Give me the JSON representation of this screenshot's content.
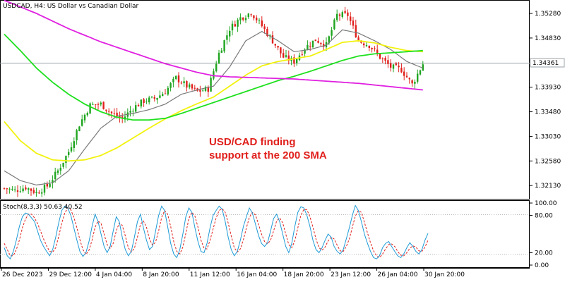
{
  "header": {
    "symbol_line": "USDCAD, H4:  US Dollar vs Canadian Dollar"
  },
  "annotation": {
    "line1": "USD/CAD finding",
    "line2": "support at the 200 SMA"
  },
  "price_axis": {
    "ticks": [
      "1.35280",
      "1.34830",
      "1.33930",
      "1.33480",
      "1.33030",
      "1.32580",
      "1.32130"
    ],
    "current_price_label": "1.34361"
  },
  "stoch": {
    "label": "Stoch(8,3,3) 50.63 40.52",
    "ticks": [
      "100.00",
      "80.00",
      "20.00",
      "0.00"
    ]
  },
  "time_axis": {
    "labels": [
      "26 Dec 2023",
      "29 Dec 12:00",
      "4 Jan 04:00",
      "8 Jan 20:00",
      "11 Jan 12:00",
      "16 Jan 04:00",
      "18 Jan 20:00",
      "23 Jan 12:00",
      "26 Jan 04:00",
      "30 Jan 20:00"
    ]
  },
  "colors": {
    "bull": "#1fa51f",
    "bear": "#e0201c",
    "sma_fast": "#7a7a7a",
    "sma_50": "#f2f20f",
    "sma_100": "#1ee01e",
    "sma_200": "#e020e0",
    "stoch_main": "#1e9ad6",
    "stoch_signal": "#e0201c",
    "annotation": "#e0201c"
  },
  "chart_data": {
    "type": "candlestick",
    "symbol": "USDCAD",
    "timeframe": "H4",
    "ylim": [
      1.319,
      1.355
    ],
    "current_price": 1.34361,
    "x_labels": [
      "26 Dec 2023",
      "29 Dec 12:00",
      "4 Jan 04:00",
      "8 Jan 20:00",
      "11 Jan 12:00",
      "16 Jan 04:00",
      "18 Jan 20:00",
      "23 Jan 12:00",
      "26 Jan 04:00",
      "30 Jan 20:00"
    ],
    "close_path": [
      [
        0,
        1.3208
      ],
      [
        4,
        1.3204
      ],
      [
        8,
        1.321
      ],
      [
        12,
        1.32
      ],
      [
        16,
        1.3212
      ],
      [
        20,
        1.324
      ],
      [
        24,
        1.3275
      ],
      [
        28,
        1.3325
      ],
      [
        32,
        1.336
      ],
      [
        36,
        1.3362
      ],
      [
        40,
        1.3345
      ],
      [
        44,
        1.3335
      ],
      [
        48,
        1.3355
      ],
      [
        52,
        1.3368
      ],
      [
        56,
        1.3372
      ],
      [
        60,
        1.3385
      ],
      [
        64,
        1.341
      ],
      [
        68,
        1.3395
      ],
      [
        72,
        1.3385
      ],
      [
        76,
        1.339
      ],
      [
        80,
        1.3455
      ],
      [
        84,
        1.35
      ],
      [
        88,
        1.352
      ],
      [
        92,
        1.353
      ],
      [
        96,
        1.3505
      ],
      [
        100,
        1.3478
      ],
      [
        104,
        1.3448
      ],
      [
        108,
        1.344
      ],
      [
        112,
        1.3465
      ],
      [
        116,
        1.348
      ],
      [
        120,
        1.347
      ],
      [
        124,
        1.3525
      ],
      [
        128,
        1.3525
      ],
      [
        132,
        1.3478
      ],
      [
        136,
        1.347
      ],
      [
        140,
        1.3448
      ],
      [
        144,
        1.343
      ],
      [
        148,
        1.3425
      ],
      [
        152,
        1.3398
      ],
      [
        156,
        1.3436
      ]
    ],
    "series": [
      {
        "name": "SMA fast",
        "values": [
          [
            0,
            1.324
          ],
          [
            6,
            1.3222
          ],
          [
            12,
            1.3214
          ],
          [
            18,
            1.3218
          ],
          [
            24,
            1.324
          ],
          [
            30,
            1.328
          ],
          [
            36,
            1.3318
          ],
          [
            42,
            1.334
          ],
          [
            48,
            1.3345
          ],
          [
            54,
            1.3352
          ],
          [
            60,
            1.3362
          ],
          [
            66,
            1.338
          ],
          [
            72,
            1.3388
          ],
          [
            78,
            1.3395
          ],
          [
            84,
            1.343
          ],
          [
            90,
            1.3478
          ],
          [
            96,
            1.3495
          ],
          [
            102,
            1.3478
          ],
          [
            108,
            1.3458
          ],
          [
            114,
            1.3462
          ],
          [
            120,
            1.347
          ],
          [
            126,
            1.3498
          ],
          [
            132,
            1.3492
          ],
          [
            138,
            1.3478
          ],
          [
            144,
            1.3462
          ],
          [
            150,
            1.344
          ],
          [
            156,
            1.3428
          ]
        ]
      },
      {
        "name": "SMA 50",
        "values": [
          [
            0,
            1.333
          ],
          [
            6,
            1.3295
          ],
          [
            12,
            1.3272
          ],
          [
            18,
            1.326
          ],
          [
            24,
            1.3258
          ],
          [
            30,
            1.326
          ],
          [
            36,
            1.3268
          ],
          [
            42,
            1.3282
          ],
          [
            48,
            1.33
          ],
          [
            54,
            1.3318
          ],
          [
            60,
            1.3335
          ],
          [
            66,
            1.335
          ],
          [
            72,
            1.3363
          ],
          [
            78,
            1.3375
          ],
          [
            84,
            1.3395
          ],
          [
            90,
            1.3415
          ],
          [
            96,
            1.3432
          ],
          [
            102,
            1.344
          ],
          [
            108,
            1.3445
          ],
          [
            114,
            1.345
          ],
          [
            120,
            1.3462
          ],
          [
            126,
            1.3475
          ],
          [
            132,
            1.3478
          ],
          [
            138,
            1.3474
          ],
          [
            144,
            1.3466
          ],
          [
            150,
            1.346
          ],
          [
            156,
            1.3458
          ]
        ]
      },
      {
        "name": "SMA 100",
        "values": [
          [
            0,
            1.349
          ],
          [
            6,
            1.346
          ],
          [
            12,
            1.3428
          ],
          [
            18,
            1.3402
          ],
          [
            24,
            1.338
          ],
          [
            30,
            1.3362
          ],
          [
            36,
            1.3348
          ],
          [
            42,
            1.3338
          ],
          [
            48,
            1.3333
          ],
          [
            54,
            1.3333
          ],
          [
            60,
            1.3336
          ],
          [
            66,
            1.3345
          ],
          [
            72,
            1.3355
          ],
          [
            78,
            1.3365
          ],
          [
            84,
            1.3375
          ],
          [
            90,
            1.3385
          ],
          [
            96,
            1.3395
          ],
          [
            102,
            1.3405
          ],
          [
            108,
            1.3413
          ],
          [
            114,
            1.3422
          ],
          [
            120,
            1.3432
          ],
          [
            126,
            1.3442
          ],
          [
            132,
            1.345
          ],
          [
            138,
            1.3454
          ],
          [
            144,
            1.3456
          ],
          [
            150,
            1.3458
          ],
          [
            156,
            1.346
          ]
        ]
      },
      {
        "name": "SMA 200",
        "values": [
          [
            0,
            1.3552
          ],
          [
            6,
            1.354
          ],
          [
            12,
            1.3528
          ],
          [
            18,
            1.3514
          ],
          [
            24,
            1.35
          ],
          [
            30,
            1.3488
          ],
          [
            36,
            1.3476
          ],
          [
            42,
            1.3466
          ],
          [
            48,
            1.3456
          ],
          [
            54,
            1.3446
          ],
          [
            60,
            1.3436
          ],
          [
            66,
            1.3428
          ],
          [
            72,
            1.342
          ],
          [
            78,
            1.3414
          ],
          [
            84,
            1.3412
          ],
          [
            90,
            1.3411
          ],
          [
            96,
            1.341
          ],
          [
            102,
            1.3409
          ],
          [
            108,
            1.3408
          ],
          [
            114,
            1.3406
          ],
          [
            120,
            1.3404
          ],
          [
            126,
            1.3402
          ],
          [
            132,
            1.34
          ],
          [
            138,
            1.3397
          ],
          [
            144,
            1.3394
          ],
          [
            150,
            1.3391
          ],
          [
            156,
            1.3388
          ]
        ]
      }
    ],
    "stochastic": {
      "params": "8,3,3",
      "main": 50.63,
      "signal": 40.52,
      "ylim": [
        0,
        100
      ],
      "levels": [
        80,
        20
      ],
      "main_series": [
        28,
        15,
        10,
        22,
        40,
        62,
        78,
        84,
        82,
        76,
        70,
        55,
        40,
        30,
        22,
        15,
        25,
        45,
        68,
        88,
        95,
        92,
        80,
        60,
        40,
        22,
        14,
        20,
        38,
        62,
        82,
        70,
        50,
        30,
        20,
        30,
        55,
        78,
        70,
        45,
        25,
        15,
        22,
        45,
        70,
        82,
        60,
        40,
        25,
        30,
        55,
        80,
        95,
        88,
        62,
        35,
        18,
        12,
        25,
        50,
        78,
        92,
        85,
        60,
        38,
        22,
        20,
        35,
        60,
        80,
        88,
        95,
        90,
        70,
        45,
        25,
        15,
        22,
        40,
        62,
        78,
        92,
        84,
        66,
        48,
        35,
        30,
        36,
        55,
        75,
        82,
        70,
        50,
        30,
        20,
        35,
        62,
        85,
        94,
        92,
        80,
        62,
        40,
        25,
        20,
        28,
        40,
        50,
        45,
        30,
        22,
        18,
        25,
        42,
        60,
        80,
        96,
        88,
        70,
        50,
        35,
        22,
        12,
        10,
        15,
        28,
        35,
        38,
        30,
        22,
        15,
        12,
        18,
        28,
        36,
        30,
        22,
        18,
        25,
        40,
        51
      ],
      "signal_series": [
        35,
        25,
        15,
        15,
        25,
        40,
        60,
        74,
        82,
        82,
        76,
        67,
        55,
        42,
        31,
        22,
        21,
        28,
        46,
        67,
        84,
        92,
        89,
        77,
        60,
        41,
        25,
        17,
        24,
        40,
        61,
        71,
        67,
        50,
        33,
        27,
        35,
        55,
        68,
        64,
        47,
        28,
        21,
        27,
        45,
        66,
        71,
        61,
        42,
        32,
        37,
        55,
        77,
        88,
        82,
        62,
        38,
        22,
        18,
        29,
        51,
        75,
        85,
        79,
        61,
        40,
        27,
        26,
        40,
        58,
        76,
        88,
        91,
        85,
        68,
        47,
        28,
        21,
        26,
        41,
        60,
        77,
        85,
        81,
        66,
        50,
        38,
        34,
        40,
        55,
        71,
        76,
        68,
        50,
        33,
        28,
        39,
        60,
        80,
        90,
        89,
        78,
        61,
        42,
        28,
        24,
        29,
        39,
        45,
        42,
        32,
        23,
        22,
        30,
        42,
        61,
        79,
        88,
        85,
        69,
        52,
        36,
        23,
        15,
        12,
        18,
        26,
        33,
        34,
        30,
        22,
        16,
        15,
        20,
        27,
        31,
        29,
        23,
        22,
        29,
        40
      ]
    }
  }
}
